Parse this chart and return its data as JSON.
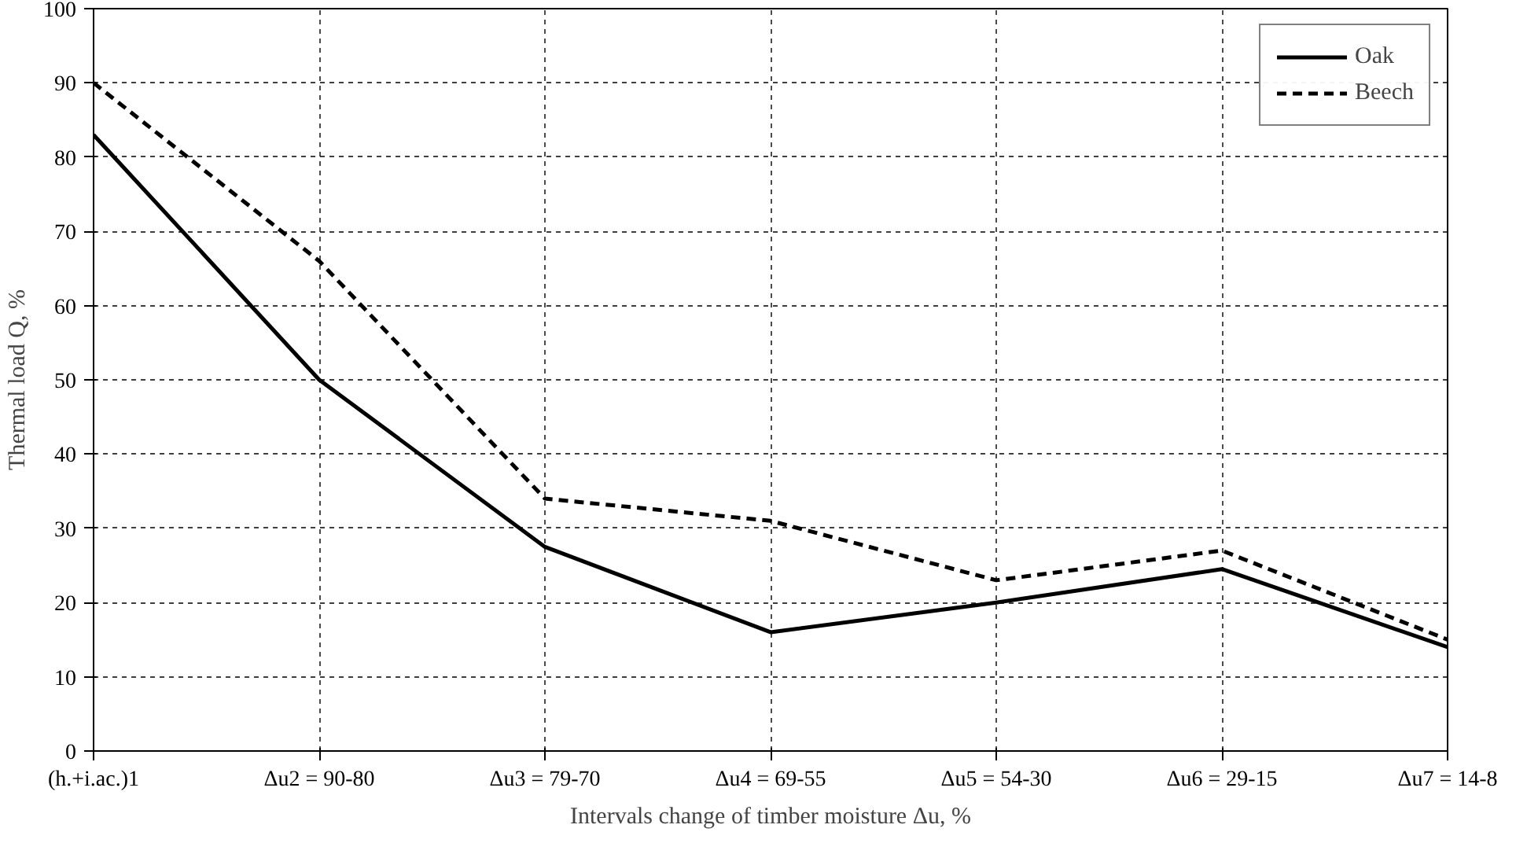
{
  "chart_data": {
    "type": "line",
    "xlabel": "Intervals change of timber moisture Δu, %",
    "ylabel": "Thermal load Q, %",
    "categories": [
      "(h.+i.ac.)1",
      "Δu2 = 90-80",
      "Δu3 = 79-70",
      "Δu4 = 69-55",
      "Δu5 = 54-30",
      "Δu6 = 29-15",
      "Δu7 = 14-8"
    ],
    "series": [
      {
        "name": "Oak",
        "color": "#000000",
        "line_style": "solid",
        "values": [
          83,
          50,
          27.5,
          16,
          20,
          24.5,
          14
        ]
      },
      {
        "name": "Beech",
        "color": "#000000",
        "line_style": "dashed",
        "values": [
          90,
          66,
          34,
          31,
          23,
          27,
          15
        ]
      }
    ],
    "ylim": [
      0,
      100
    ],
    "yticks": [
      0,
      10,
      20,
      30,
      40,
      50,
      60,
      70,
      80,
      90,
      100
    ],
    "grid": true,
    "legend": "top right",
    "marker": "none"
  }
}
